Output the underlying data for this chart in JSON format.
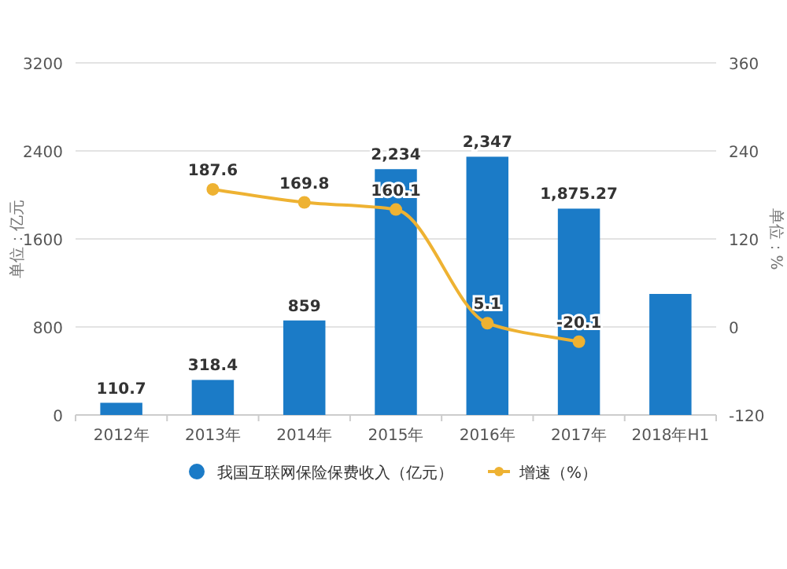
{
  "chart_data": {
    "type": "bar",
    "categories": [
      "2012年",
      "2013年",
      "2014年",
      "2015年",
      "2016年",
      "2017年",
      "2018年H1"
    ],
    "ylabel": "单位：亿元",
    "y2label": "单位：%",
    "ylim": [
      0,
      3200
    ],
    "yticks": [
      0,
      800,
      1600,
      2400,
      3200
    ],
    "y2lim": [
      -120,
      360
    ],
    "y2ticks": [
      -120,
      0,
      120,
      240,
      360
    ],
    "grid": "y",
    "legend": "bottom",
    "marker": "circle",
    "series": [
      {
        "name": "我国互联网保险保费收入（亿元）",
        "color": "#1b7bc7",
        "values": [
          110.7,
          318.4,
          859,
          2234,
          2347,
          1875.27,
          1100
        ],
        "value_labels": [
          "110.7",
          "318.4",
          "859",
          "2,234",
          "2,347",
          "1,875.27",
          null
        ]
      },
      {
        "name": "增速（%）",
        "type": "line",
        "axis": "y2",
        "color": "#eeb232",
        "values": [
          null,
          187.6,
          169.8,
          160.1,
          5.1,
          -20.1,
          null
        ],
        "value_labels": [
          null,
          "187.6",
          "169.8",
          "160.1",
          "5.1",
          "-20.1",
          null
        ]
      }
    ]
  }
}
